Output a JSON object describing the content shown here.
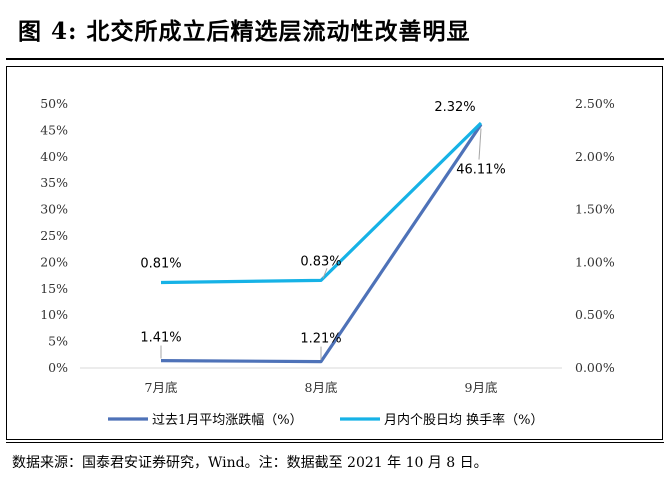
{
  "title": "图  4:  北交所成立后精选层流动性改善明显",
  "source": "数据来源：国泰君安证券研究，Wind。注：数据截至 2021 年 10 月 8 日。",
  "colors": {
    "series1": "#4e72b8",
    "series2": "#16b2e6",
    "axis": "#d9d9d9"
  },
  "chart_data": {
    "type": "line",
    "categories": [
      "7月底",
      "8月底",
      "9月底"
    ],
    "left_ticks": [
      "0%",
      "5%",
      "10%",
      "15%",
      "20%",
      "25%",
      "30%",
      "35%",
      "40%",
      "45%",
      "50%"
    ],
    "right_ticks": [
      "0.00%",
      "0.50%",
      "1.00%",
      "1.50%",
      "2.00%",
      "2.50%"
    ],
    "ylim_left": [
      0,
      50
    ],
    "ylim_right": [
      0,
      2.5
    ],
    "legend_position": "bottom",
    "series": [
      {
        "name": "过去1月平均涨跌幅（%）",
        "axis": "left",
        "values": [
          1.41,
          1.21,
          46.11
        ],
        "labels": [
          "1.41%",
          "1.21%",
          "46.11%"
        ]
      },
      {
        "name": "月内个股日均 换手率（%）",
        "axis": "right",
        "values": [
          0.81,
          0.83,
          2.32
        ],
        "labels": [
          "0.81%",
          "0.83%",
          "2.32%"
        ]
      }
    ]
  }
}
